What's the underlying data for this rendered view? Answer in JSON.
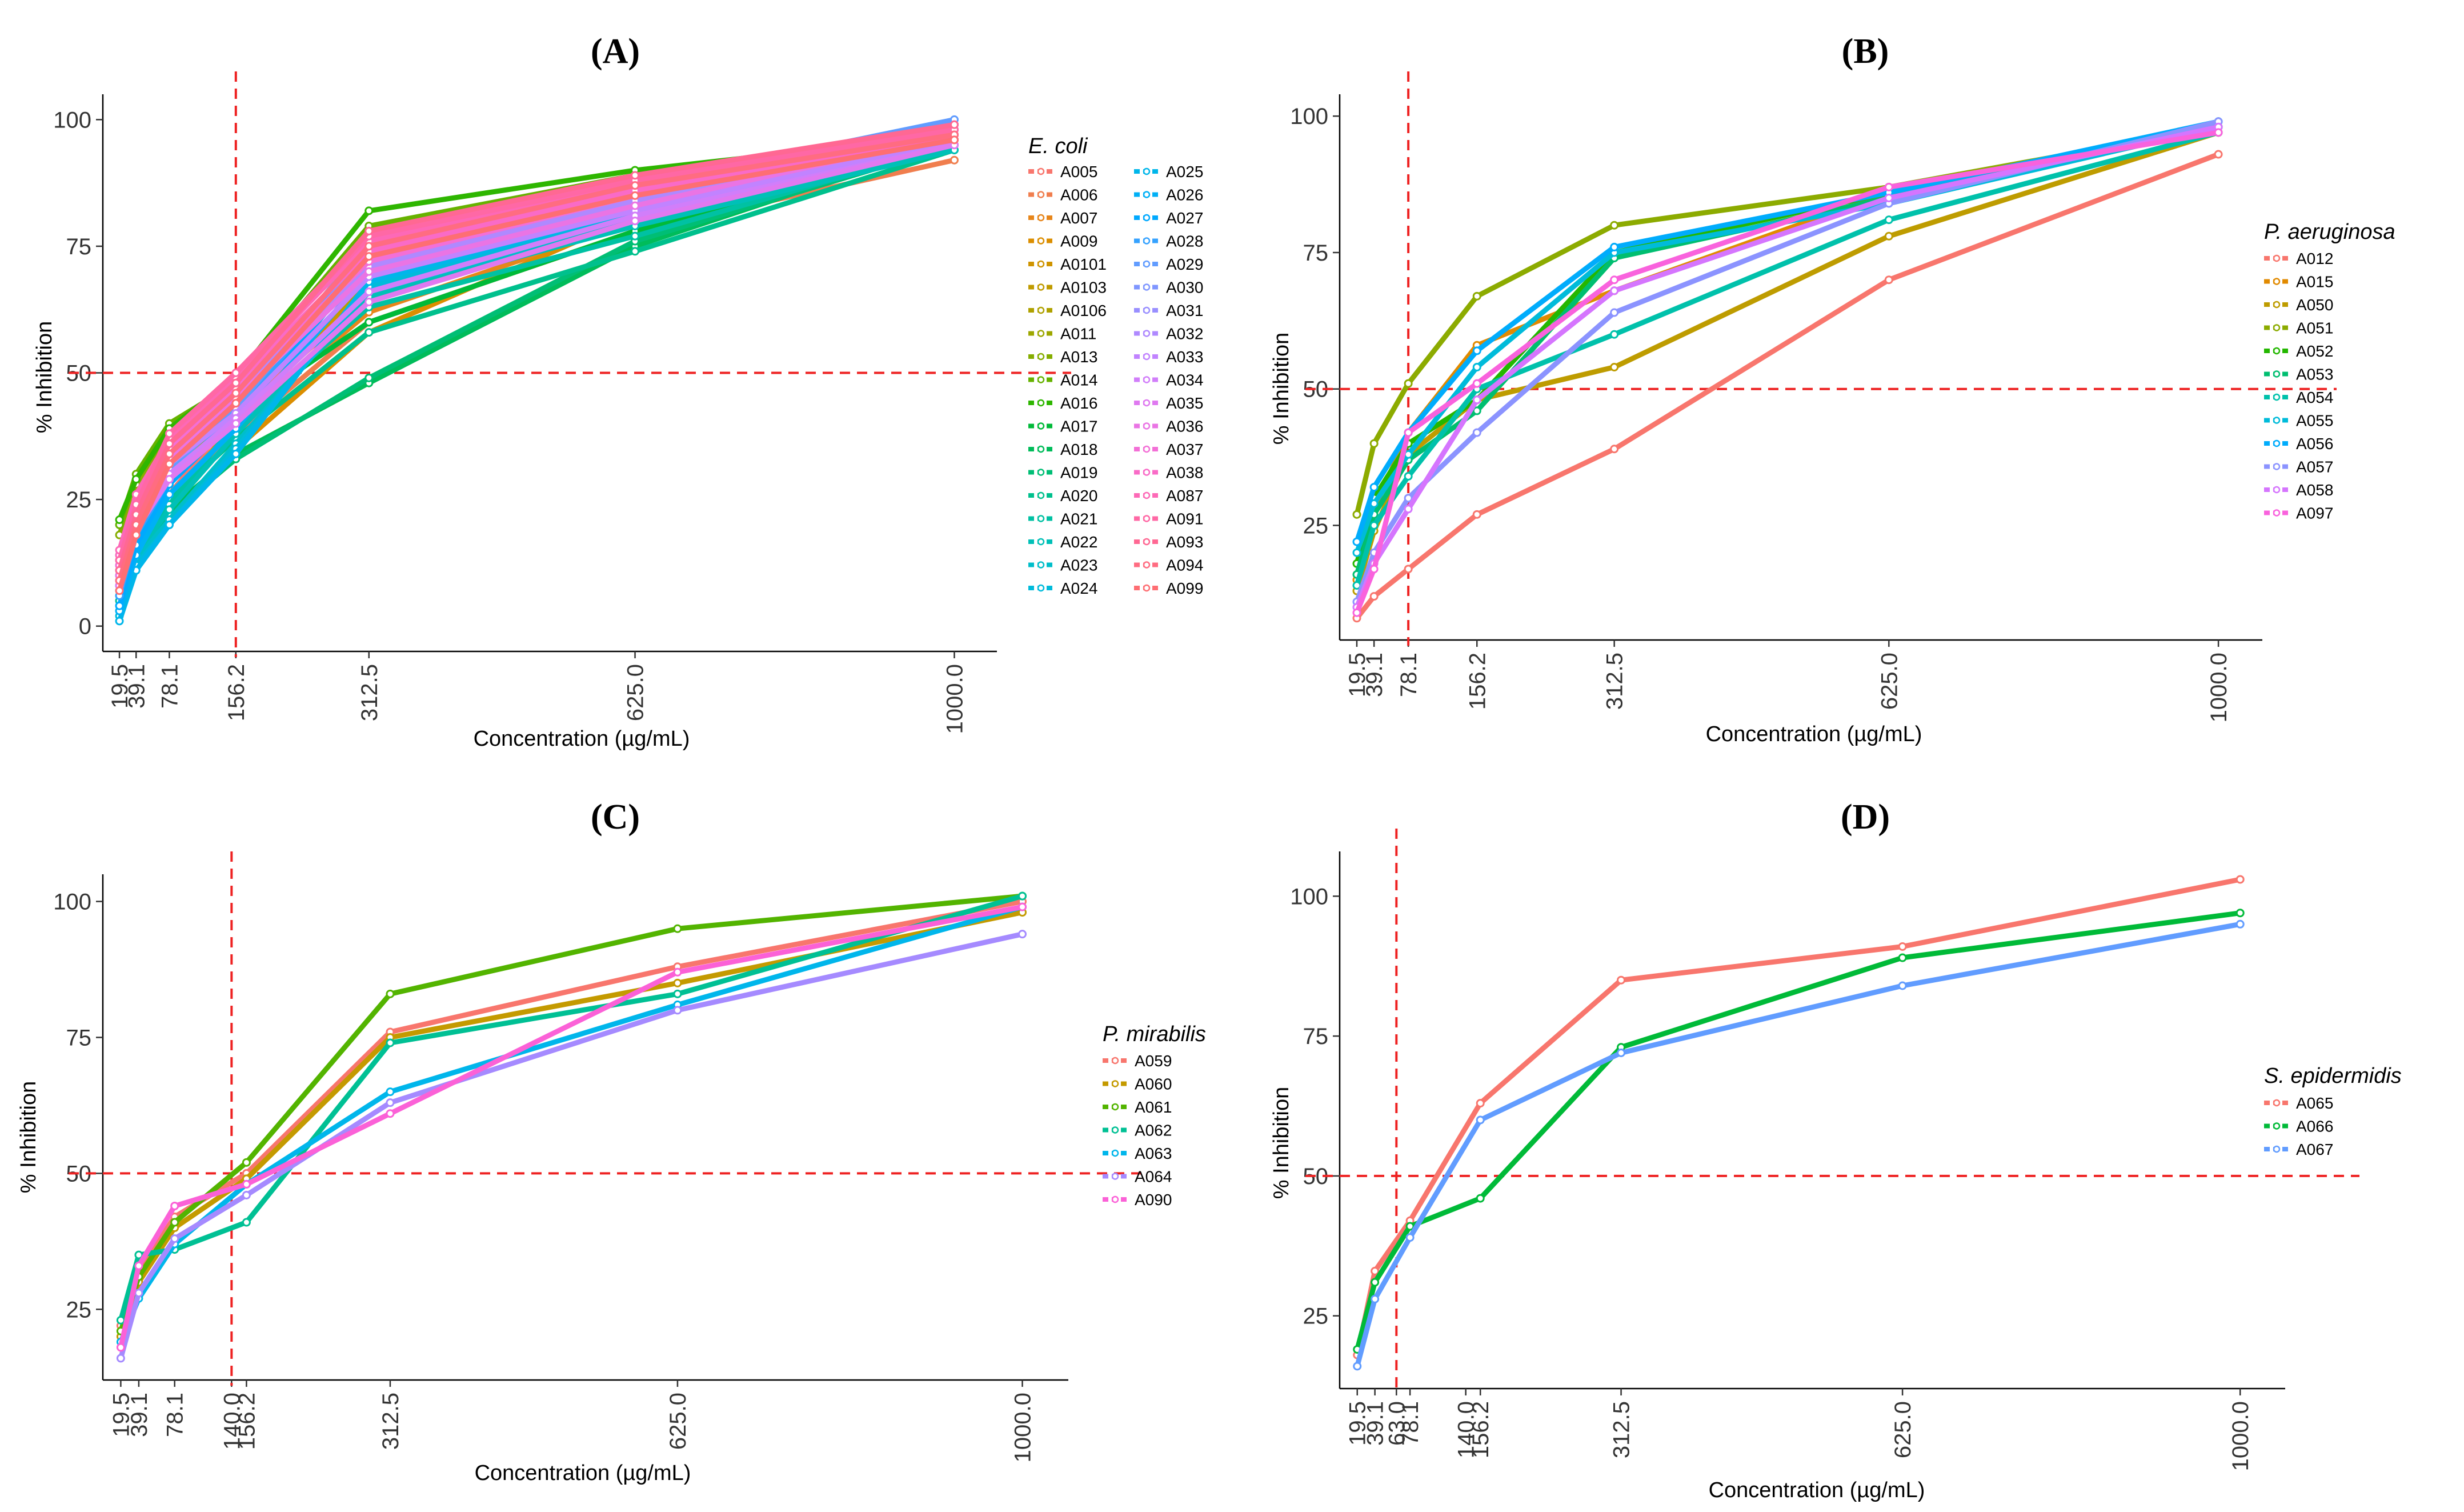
{
  "chart_data": [
    {
      "panel": "(A)",
      "type": "line",
      "title": "(A)",
      "legend_title": "E. coli",
      "xlabel": "Concentration (µg/mL)",
      "ylabel": "% Inhibition",
      "x": [
        19.5,
        39.1,
        78.1,
        156.2,
        312.5,
        625.0,
        1000.0
      ],
      "x_tick_labels": [
        "19.5",
        "39.1",
        "78.1",
        "156.2",
        "312.5",
        "625.0",
        "1000.0"
      ],
      "y_ticks": [
        0,
        25,
        50,
        75,
        100
      ],
      "xlim": [
        0,
        1050
      ],
      "ylim": [
        -5,
        105
      ],
      "hline": 50,
      "vline": 156.2,
      "series": [
        {
          "name": "A005",
          "color": "#F8766D",
          "values": [
            5,
            15,
            26,
            42,
            65,
            82,
            96
          ]
        },
        {
          "name": "A006",
          "color": "#F07E4E",
          "values": [
            8,
            16,
            24,
            38,
            60,
            78,
            92
          ]
        },
        {
          "name": "A007",
          "color": "#E7861B",
          "values": [
            10,
            18,
            25,
            40,
            62,
            80,
            94
          ]
        },
        {
          "name": "A009",
          "color": "#DB8E00",
          "values": [
            9,
            17,
            22,
            35,
            58,
            81,
            97
          ]
        },
        {
          "name": "A0101",
          "color": "#CF9400",
          "values": [
            12,
            20,
            30,
            43,
            67,
            84,
            98
          ]
        },
        {
          "name": "A0103",
          "color": "#C09B00",
          "values": [
            11,
            19,
            29,
            41,
            66,
            83,
            97
          ]
        },
        {
          "name": "A0106",
          "color": "#AFA100",
          "values": [
            13,
            21,
            31,
            44,
            68,
            85,
            96
          ]
        },
        {
          "name": "A011",
          "color": "#9DA700",
          "values": [
            14,
            25,
            38,
            47,
            70,
            86,
            97
          ]
        },
        {
          "name": "A013",
          "color": "#85AD00",
          "values": [
            18,
            28,
            37,
            46,
            72,
            87,
            98
          ]
        },
        {
          "name": "A014",
          "color": "#66B200",
          "values": [
            20,
            30,
            40,
            48,
            79,
            89,
            96
          ]
        },
        {
          "name": "A016",
          "color": "#2EB600",
          "values": [
            21,
            29,
            39,
            49,
            82,
            90,
            97
          ]
        },
        {
          "name": "A017",
          "color": "#00BA38",
          "values": [
            10,
            19,
            28,
            42,
            60,
            78,
            95
          ]
        },
        {
          "name": "A018",
          "color": "#00BC5A",
          "values": [
            8,
            15,
            23,
            34,
            48,
            75,
            96
          ]
        },
        {
          "name": "A019",
          "color": "#00BE75",
          "values": [
            7,
            14,
            22,
            33,
            49,
            76,
            95
          ]
        },
        {
          "name": "A020",
          "color": "#00C08D",
          "values": [
            6,
            16,
            25,
            37,
            58,
            74,
            94
          ]
        },
        {
          "name": "A021",
          "color": "#00C1A3",
          "values": [
            5,
            15,
            24,
            40,
            63,
            77,
            95
          ]
        },
        {
          "name": "A022",
          "color": "#00C0B7",
          "values": [
            4,
            14,
            23,
            38,
            65,
            79,
            94
          ]
        },
        {
          "name": "A023",
          "color": "#00BECA",
          "values": [
            3,
            13,
            21,
            36,
            66,
            80,
            96
          ]
        },
        {
          "name": "A024",
          "color": "#00BBDB",
          "values": [
            2,
            12,
            20,
            35,
            67,
            81,
            97
          ]
        },
        {
          "name": "A025",
          "color": "#00B6EA",
          "values": [
            1,
            11,
            20,
            34,
            68,
            82,
            98
          ]
        },
        {
          "name": "A026",
          "color": "#00B0F6",
          "values": [
            3,
            14,
            26,
            39,
            70,
            84,
            98
          ]
        },
        {
          "name": "A027",
          "color": "#00A9FF",
          "values": [
            4,
            16,
            28,
            41,
            72,
            85,
            99
          ]
        },
        {
          "name": "A028",
          "color": "#35A2FF",
          "values": [
            6,
            18,
            29,
            42,
            74,
            86,
            99
          ]
        },
        {
          "name": "A029",
          "color": "#619CFF",
          "values": [
            8,
            20,
            31,
            43,
            75,
            87,
            100
          ]
        },
        {
          "name": "A030",
          "color": "#7F96FF",
          "values": [
            10,
            22,
            33,
            44,
            76,
            88,
            99
          ]
        },
        {
          "name": "A031",
          "color": "#998FFF",
          "values": [
            12,
            23,
            34,
            45,
            73,
            86,
            98
          ]
        },
        {
          "name": "A032",
          "color": "#AF89FF",
          "values": [
            13,
            24,
            35,
            46,
            71,
            84,
            97
          ]
        },
        {
          "name": "A033",
          "color": "#C183FF",
          "values": [
            11,
            22,
            32,
            42,
            69,
            82,
            96
          ]
        },
        {
          "name": "A034",
          "color": "#D17EFA",
          "values": [
            9,
            20,
            30,
            41,
            66,
            81,
            95
          ]
        },
        {
          "name": "A035",
          "color": "#DF79F0",
          "values": [
            8,
            19,
            29,
            40,
            64,
            80,
            95
          ]
        },
        {
          "name": "A036",
          "color": "#EA74E4",
          "values": [
            10,
            21,
            33,
            45,
            70,
            83,
            97
          ]
        },
        {
          "name": "A037",
          "color": "#F36FD6",
          "values": [
            12,
            23,
            35,
            47,
            72,
            85,
            98
          ]
        },
        {
          "name": "A038",
          "color": "#F96BC7",
          "values": [
            14,
            25,
            36,
            48,
            74,
            86,
            96
          ]
        },
        {
          "name": "A087",
          "color": "#FD69B7",
          "values": [
            15,
            26,
            37,
            49,
            76,
            87,
            97
          ]
        },
        {
          "name": "A091",
          "color": "#FF68A5",
          "values": [
            13,
            24,
            38,
            50,
            77,
            88,
            98
          ]
        },
        {
          "name": "A093",
          "color": "#FF6893",
          "values": [
            11,
            22,
            36,
            48,
            78,
            89,
            99
          ]
        },
        {
          "name": "A094",
          "color": "#FF6C81",
          "values": [
            9,
            20,
            34,
            46,
            75,
            87,
            97
          ]
        },
        {
          "name": "A099",
          "color": "#FE6E73",
          "values": [
            7,
            18,
            32,
            44,
            73,
            85,
            96
          ]
        }
      ]
    },
    {
      "panel": "(B)",
      "type": "line",
      "title": "(B)",
      "legend_title": "P. aeruginosa",
      "xlabel": "Concentration (µg/mL)",
      "ylabel": "% Inhibition",
      "x": [
        19.5,
        39.1,
        78.1,
        156.2,
        312.5,
        625.0,
        1000.0
      ],
      "x_tick_labels": [
        "19.5",
        "39.1",
        "78.1",
        "156.2",
        "312.5",
        "625.0",
        "1000.0"
      ],
      "y_ticks": [
        25,
        50,
        75,
        100
      ],
      "xlim": [
        0,
        1050
      ],
      "ylim": [
        4,
        104
      ],
      "hline": 50,
      "vline": 78.1,
      "series": [
        {
          "name": "A012",
          "color": "#F8766D",
          "values": [
            8,
            12,
            17,
            27,
            39,
            70,
            93
          ]
        },
        {
          "name": "A015",
          "color": "#E18A00",
          "values": [
            15,
            28,
            42,
            58,
            68,
            86,
            98
          ]
        },
        {
          "name": "A050",
          "color": "#BE9C00",
          "values": [
            13,
            24,
            38,
            48,
            54,
            78,
            97
          ]
        },
        {
          "name": "A051",
          "color": "#8CAB00",
          "values": [
            27,
            40,
            51,
            67,
            80,
            87,
            98
          ]
        },
        {
          "name": "A052",
          "color": "#24B700",
          "values": [
            18,
            30,
            40,
            48,
            75,
            86,
            98
          ]
        },
        {
          "name": "A053",
          "color": "#00BE70",
          "values": [
            16,
            27,
            37,
            46,
            74,
            85,
            99
          ]
        },
        {
          "name": "A054",
          "color": "#00C1AB",
          "values": [
            14,
            25,
            34,
            50,
            60,
            81,
            97
          ]
        },
        {
          "name": "A055",
          "color": "#00BBDA",
          "values": [
            20,
            29,
            38,
            54,
            75,
            84,
            98
          ]
        },
        {
          "name": "A056",
          "color": "#00ACFC",
          "values": [
            22,
            32,
            42,
            57,
            76,
            86,
            99
          ]
        },
        {
          "name": "A057",
          "color": "#8B93FF",
          "values": [
            11,
            20,
            30,
            42,
            64,
            84,
            99
          ]
        },
        {
          "name": "A058",
          "color": "#D575FE",
          "values": [
            10,
            18,
            28,
            48,
            68,
            85,
            98
          ]
        },
        {
          "name": "A097",
          "color": "#F962DD",
          "values": [
            9,
            17,
            42,
            51,
            70,
            87,
            97
          ]
        }
      ]
    },
    {
      "panel": "(C)",
      "type": "line",
      "title": "(C)",
      "legend_title": "P. mirabilis",
      "xlabel": "Concentration (µg/mL)",
      "ylabel": "% Inhibition",
      "x": [
        19.5,
        39.1,
        78.1,
        156.2,
        312.5,
        625.0,
        1000.0
      ],
      "x_tick_labels": [
        "19.5",
        "39.1",
        "78.1",
        "140.0",
        "156.2",
        "312.5",
        "625.0",
        "1000.0"
      ],
      "x_tick_values": [
        19.5,
        39.1,
        78.1,
        140.0,
        156.2,
        312.5,
        625.0,
        1000.0
      ],
      "y_ticks": [
        25,
        50,
        75,
        100
      ],
      "xlim": [
        0,
        1050
      ],
      "ylim": [
        12,
        105
      ],
      "hline": 50,
      "vline": 140.0,
      "series": [
        {
          "name": "A059",
          "color": "#F8766D",
          "values": [
            22,
            32,
            42,
            50,
            76,
            88,
            100
          ]
        },
        {
          "name": "A060",
          "color": "#C49A00",
          "values": [
            20,
            30,
            40,
            49,
            75,
            85,
            98
          ]
        },
        {
          "name": "A061",
          "color": "#53B400",
          "values": [
            21,
            31,
            41,
            52,
            83,
            95,
            101
          ]
        },
        {
          "name": "A062",
          "color": "#00C094",
          "values": [
            23,
            35,
            36,
            41,
            74,
            83,
            101
          ]
        },
        {
          "name": "A063",
          "color": "#00B6EB",
          "values": [
            19,
            27,
            37,
            48,
            65,
            81,
            99
          ]
        },
        {
          "name": "A064",
          "color": "#A58AFF",
          "values": [
            16,
            28,
            38,
            46,
            63,
            80,
            94
          ]
        },
        {
          "name": "A090",
          "color": "#FB61D7",
          "values": [
            18,
            33,
            44,
            48,
            61,
            87,
            99
          ]
        }
      ]
    },
    {
      "panel": "(D)",
      "type": "line",
      "title": "(D)",
      "legend_title": "S. epidermidis",
      "xlabel": "Concentration (µg/mL)",
      "ylabel": "% Inhibition",
      "x": [
        19.5,
        39.1,
        78.1,
        156.2,
        312.5,
        625.0,
        1000.0
      ],
      "x_tick_labels": [
        "19.5",
        "39.1",
        "63.0",
        "78.1",
        "140.0",
        "156.2",
        "312.5",
        "625.0",
        "1000.0"
      ],
      "x_tick_values": [
        19.5,
        39.1,
        63.0,
        78.1,
        140.0,
        156.2,
        312.5,
        625.0,
        1000.0
      ],
      "y_ticks": [
        25,
        50,
        75,
        100
      ],
      "xlim": [
        0,
        1050
      ],
      "ylim": [
        12,
        108
      ],
      "hline": 50,
      "vline": 63.0,
      "series": [
        {
          "name": "A065",
          "color": "#F8766D",
          "values": [
            18,
            33,
            42,
            63,
            85,
            91,
            103
          ]
        },
        {
          "name": "A066",
          "color": "#00BA38",
          "values": [
            19,
            31,
            41,
            46,
            73,
            89,
            97
          ]
        },
        {
          "name": "A067",
          "color": "#619CFF",
          "values": [
            16,
            28,
            39,
            60,
            72,
            84,
            95
          ]
        }
      ]
    }
  ]
}
